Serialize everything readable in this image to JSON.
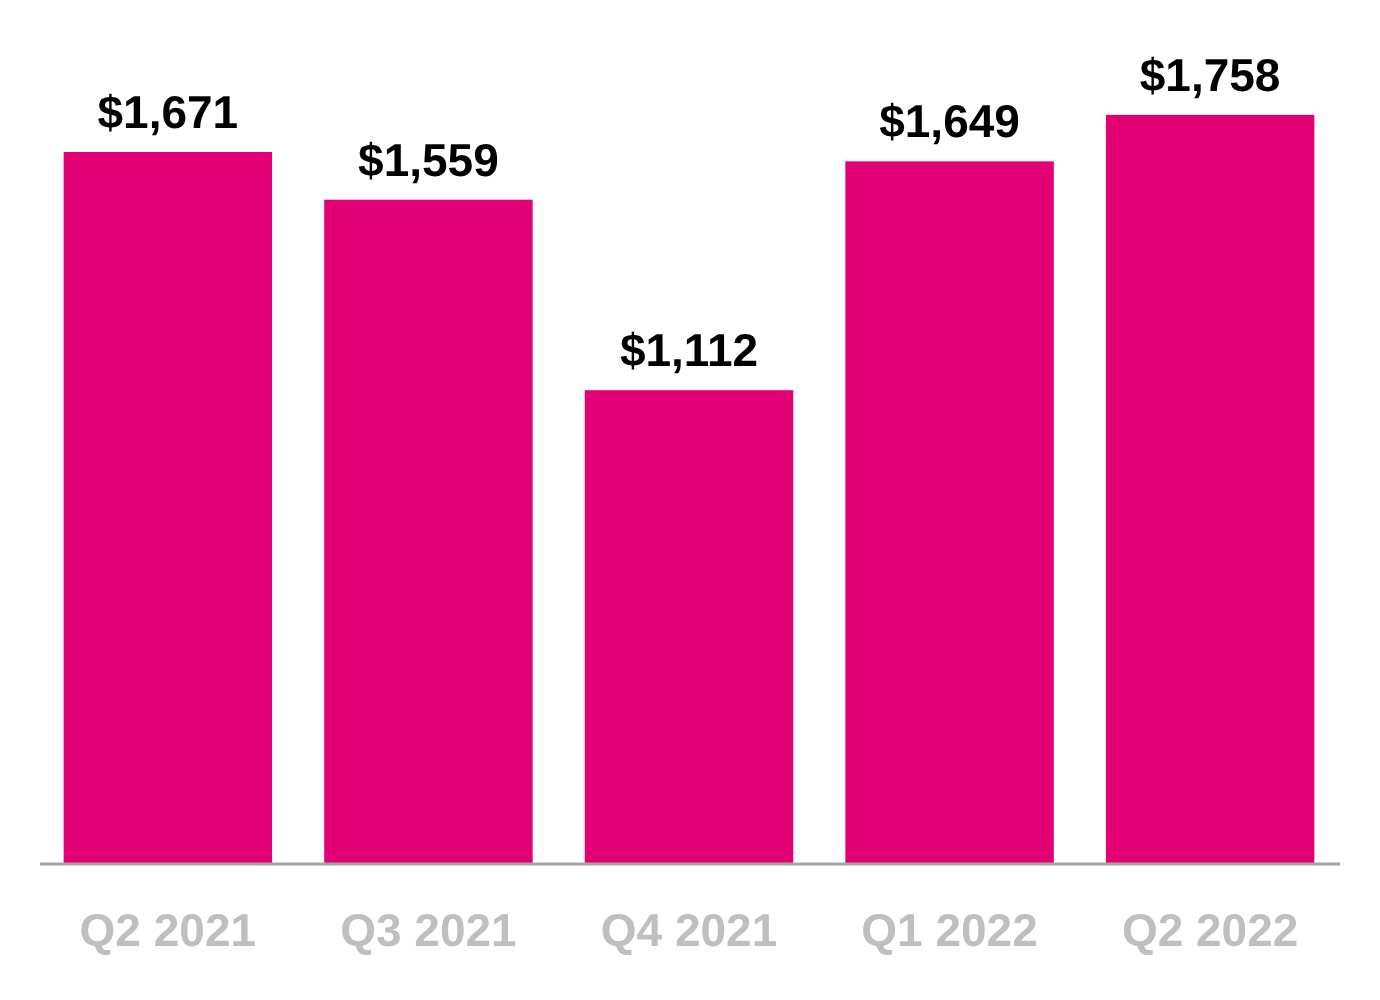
{
  "chart_data": {
    "type": "bar",
    "categories": [
      "Q2 2021",
      "Q3 2021",
      "Q4 2021",
      "Q1 2022",
      "Q2 2022"
    ],
    "values": [
      1671,
      1559,
      1112,
      1649,
      1758
    ],
    "value_labels": [
      "$1,671",
      "$1,559",
      "$1,112",
      "$1,649",
      "$1,758"
    ],
    "color": "#e20074"
  }
}
